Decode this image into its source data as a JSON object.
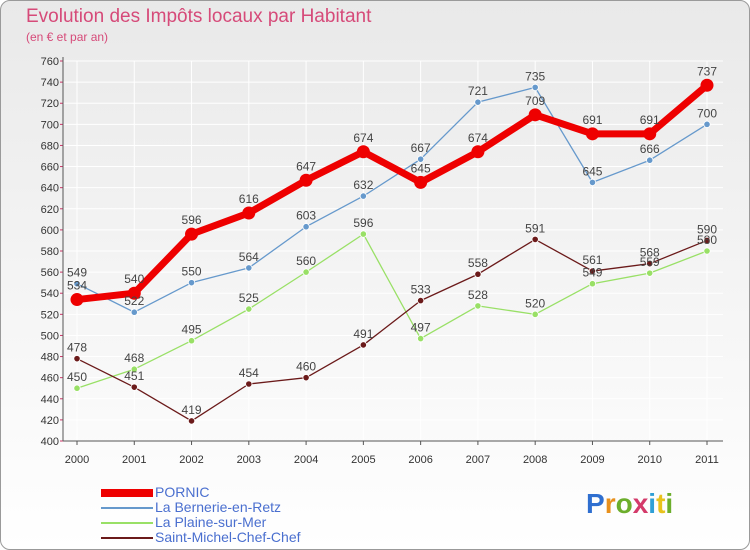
{
  "title": "Evolution des Impôts locaux par Habitant",
  "subtitle": "(en € et par an)",
  "logo": "Proxiti",
  "colors": {
    "grid": "#ffffff",
    "axis": "#555555",
    "title": "#d64a79",
    "legend_text": "#4a6fcf"
  },
  "chart_data": {
    "type": "line",
    "title": "Evolution des Impôts locaux par Habitant",
    "ylabel": "(en € et par an)",
    "categories": [
      "2000",
      "2001",
      "2002",
      "2003",
      "2004",
      "2005",
      "2006",
      "2007",
      "2008",
      "2009",
      "2010",
      "2011"
    ],
    "ylim": [
      400,
      760
    ],
    "yticks": [
      400,
      420,
      440,
      460,
      480,
      500,
      520,
      540,
      560,
      580,
      600,
      620,
      640,
      660,
      680,
      700,
      720,
      740,
      760
    ],
    "series": [
      {
        "name": "PORNIC",
        "color": "#ee0000",
        "emphasis": true,
        "values": [
          534,
          540,
          596,
          616,
          647,
          674,
          645,
          674,
          709,
          691,
          691,
          737
        ],
        "labels": [
          "534",
          "540",
          "596",
          "616",
          "647",
          "674",
          "645",
          "674",
          "709",
          "691",
          "691",
          "737"
        ]
      },
      {
        "name": "La Bernerie-en-Retz",
        "color": "#6699cc",
        "emphasis": false,
        "values": [
          549,
          522,
          550,
          564,
          603,
          632,
          667,
          721,
          735,
          645,
          666,
          700
        ],
        "labels": [
          "549",
          "522",
          "550",
          "564",
          "603",
          "632",
          "667",
          "721",
          "735",
          "645",
          "666",
          "700"
        ]
      },
      {
        "name": "La Plaine-sur-Mer",
        "color": "#99e066",
        "emphasis": false,
        "values": [
          450,
          468,
          495,
          525,
          560,
          596,
          497,
          528,
          520,
          549,
          559,
          580
        ],
        "labels": [
          "450",
          "468",
          "495",
          "525",
          "560",
          "596",
          "497",
          "528",
          "520",
          "549",
          "559",
          "580"
        ]
      },
      {
        "name": "Saint-Michel-Chef-Chef",
        "color": "#6b1a1a",
        "emphasis": false,
        "values": [
          478,
          451,
          419,
          454,
          460,
          491,
          533,
          558,
          591,
          561,
          568,
          590
        ],
        "labels": [
          "478",
          "451",
          "419",
          "454",
          "460",
          "491",
          "533",
          "558",
          "591",
          "561",
          "568",
          "590"
        ]
      }
    ]
  }
}
